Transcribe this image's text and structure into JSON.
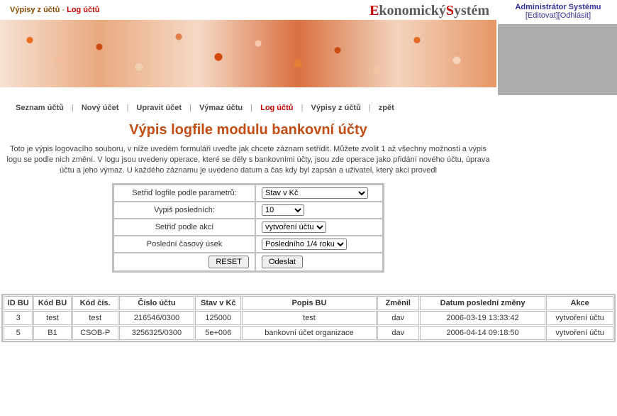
{
  "breadcrumb": {
    "parent": "Výpisy z účtů",
    "sep": "-",
    "current": "Log účtů"
  },
  "logo": {
    "part1": "E",
    "part2": "konomický",
    "part3": "S",
    "part4": "ystém"
  },
  "admin": {
    "title": "Administrátor Systému",
    "edit": "Editovat",
    "logout": "Odhlásit"
  },
  "menu": {
    "items": [
      {
        "label": "Seznam účtů",
        "active": false
      },
      {
        "label": "Nový účet",
        "active": false
      },
      {
        "label": "Upravit účet",
        "active": false
      },
      {
        "label": "Výmaz účtu",
        "active": false
      },
      {
        "label": "Log účtů",
        "active": true
      },
      {
        "label": "Výpisy z účtů",
        "active": false
      },
      {
        "label": "zpět",
        "active": false
      }
    ]
  },
  "page_title": "Výpis logfile modulu bankovní účty",
  "intro": "Toto je výpis logovacího souboru, v níže uvedém formuláři uveďte jak chcete záznam setřídit. Můžete zvolit 1 až všechny možnosti a výpis logu se podle nich změní. V logu jsou uvedeny operace, které se děly s bankovními účty, jsou zde operace jako přidání nového účtu, úprava účtu a jeho výmaz. U každého záznamu je uvedeno datum a čas kdy byl zapsán a uživatel, který akci provedl",
  "form": {
    "rows": [
      {
        "label": "Setřiď logfile podle parametrů:",
        "value": "Stav v Kč"
      },
      {
        "label": "Vypiš posledních:",
        "value": "10"
      },
      {
        "label": "Setřiď podle akcí",
        "value": "vytvoření účtu"
      },
      {
        "label": "Poslední časový úsek",
        "value": "Posledního 1/4 roku"
      }
    ],
    "reset": "RESET",
    "submit": "Odeslat"
  },
  "table": {
    "headers": [
      "ID BU",
      "Kód BU",
      "Kód čís.",
      "Číslo účtu",
      "Stav v Kč",
      "Popis BU",
      "Změnil",
      "Datum poslední změny",
      "Akce"
    ],
    "rows": [
      [
        "3",
        "test",
        "test",
        "216546/0300",
        "125000",
        "test",
        "dav",
        "2006-03-19 13:33:42",
        "vytvoření účtu"
      ],
      [
        "5",
        "B1",
        "CSOB-P",
        "3256325/0300",
        "5e+006",
        "bankovní účet organizace",
        "dav",
        "2006-04-14 09:18:50",
        "vytvoření účtu"
      ]
    ],
    "col_widths": [
      "35px",
      "45px",
      "55px",
      "90px",
      "55px",
      "160px",
      "50px",
      "150px",
      "80px"
    ]
  }
}
